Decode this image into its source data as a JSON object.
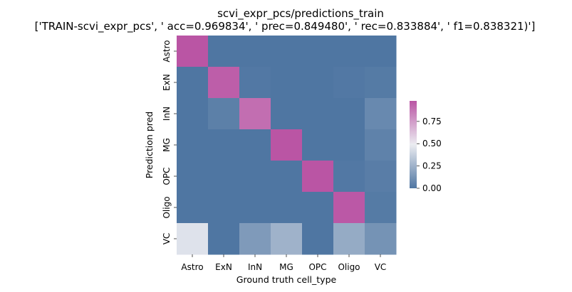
{
  "chart_data": {
    "type": "heatmap",
    "title": "scvi_expr_pcs/predictions_train",
    "subtitle": "['TRAIN-scvi_expr_pcs', ' acc=0.969834', '  prec=0.849480', ' rec=0.833884', ' f1=0.838321)']",
    "xlabel": "Ground truth cell_type",
    "ylabel": "Prediction pred",
    "x_categories": [
      "Astro",
      "ExN",
      "InN",
      "MG",
      "OPC",
      "Oligo",
      "VC"
    ],
    "y_categories": [
      "Astro",
      "ExN",
      "InN",
      "MG",
      "OPC",
      "Oligo",
      "VC"
    ],
    "values": [
      [
        0.98,
        0.0,
        0.0,
        0.0,
        0.0,
        0.0,
        0.0
      ],
      [
        0.0,
        0.95,
        0.01,
        0.0,
        0.0,
        0.01,
        0.02
      ],
      [
        0.0,
        0.04,
        0.9,
        0.0,
        0.0,
        0.0,
        0.08
      ],
      [
        0.0,
        0.0,
        0.0,
        0.99,
        0.0,
        0.0,
        0.05
      ],
      [
        0.0,
        0.0,
        0.0,
        0.0,
        1.0,
        0.01,
        0.03
      ],
      [
        0.0,
        0.0,
        0.0,
        0.0,
        0.0,
        0.97,
        0.02
      ],
      [
        0.45,
        0.0,
        0.15,
        0.25,
        0.0,
        0.22,
        0.12
      ]
    ],
    "vmin": 0.0,
    "vmax": 0.98,
    "colorbar_ticks": [
      "0.00",
      "0.25",
      "0.50",
      "0.75"
    ],
    "colorbar_values": [
      0.0,
      0.25,
      0.5,
      0.75
    ],
    "colormap": [
      "#4f76a2",
      "#ebecf1",
      "#ba55a4"
    ]
  }
}
